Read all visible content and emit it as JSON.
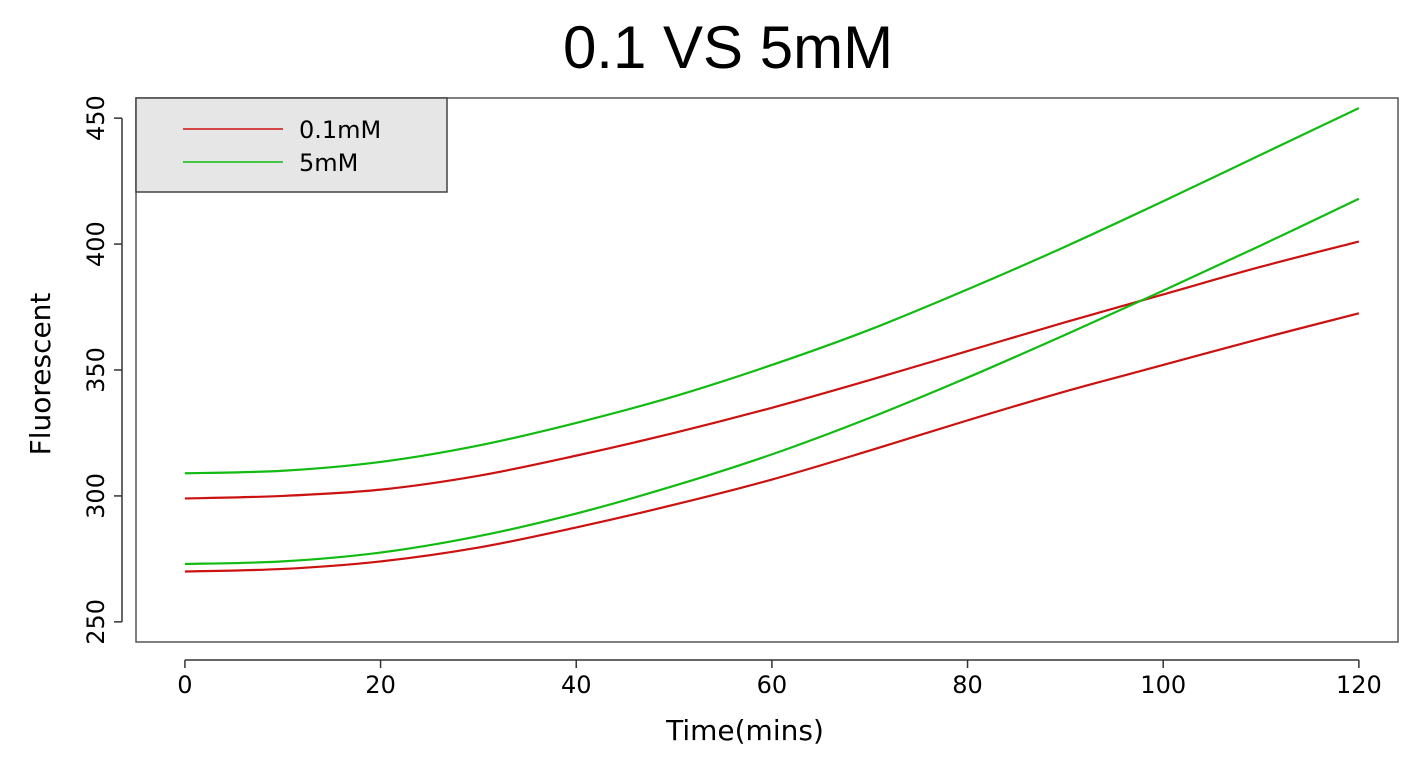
{
  "chart_data": {
    "type": "line",
    "title": "0.1 VS 5mM",
    "xlabel": "Time(mins)",
    "ylabel": "Fluorescent",
    "xlim": [
      -5,
      124
    ],
    "ylim": [
      242,
      458
    ],
    "xticks": [
      0,
      20,
      40,
      60,
      80,
      100,
      120
    ],
    "yticks": [
      250,
      300,
      350,
      400,
      450
    ],
    "grid": false,
    "legend": {
      "placement": "top-left",
      "entries": [
        {
          "label": "0.1mM",
          "color": "#cc1111"
        },
        {
          "label": "5mM",
          "color": "#11bb11"
        }
      ]
    },
    "series": [
      {
        "group": "0.1mM",
        "color": "#cc1111",
        "x": [
          0,
          10,
          20,
          30,
          40,
          50,
          60,
          70,
          80,
          90,
          100,
          110,
          120
        ],
        "values": [
          299,
          300,
          302.5,
          308,
          316,
          325,
          335,
          346,
          357.5,
          369,
          380,
          391,
          401
        ]
      },
      {
        "group": "0.1mM",
        "color": "#cc1111",
        "x": [
          0,
          10,
          20,
          30,
          40,
          50,
          60,
          70,
          80,
          90,
          100,
          110,
          120
        ],
        "values": [
          270,
          271,
          274,
          279.5,
          287.5,
          296.5,
          306.5,
          318,
          330,
          341.5,
          352,
          362.5,
          372.5
        ]
      },
      {
        "group": "5mM",
        "color": "#11bb11",
        "x": [
          0,
          10,
          20,
          30,
          40,
          50,
          60,
          70,
          80,
          90,
          100,
          110,
          120
        ],
        "values": [
          309,
          310,
          313.5,
          320,
          329,
          339.5,
          352,
          366,
          382,
          399,
          417,
          435.5,
          454
        ]
      },
      {
        "group": "5mM",
        "color": "#11bb11",
        "x": [
          0,
          10,
          20,
          30,
          40,
          50,
          60,
          70,
          80,
          90,
          100,
          110,
          120
        ],
        "values": [
          273,
          274,
          277.5,
          284,
          293,
          304,
          316.5,
          331,
          347,
          364,
          381.5,
          399.5,
          418
        ]
      }
    ]
  }
}
